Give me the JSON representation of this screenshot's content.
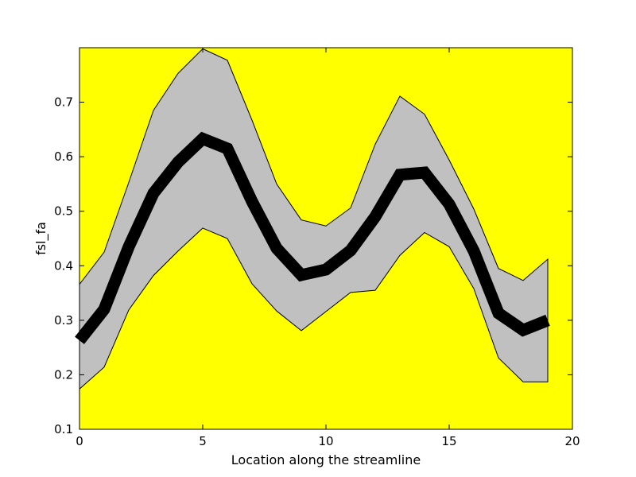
{
  "chart_data": {
    "type": "line",
    "xlabel": "Location along the streamline",
    "ylabel": "fsl_fa",
    "xlim": [
      0,
      20
    ],
    "ylim": [
      0.1,
      0.8
    ],
    "x_ticks": [
      "0",
      "5",
      "10",
      "15",
      "20"
    ],
    "y_ticks": [
      "0.1",
      "0.2",
      "0.3",
      "0.4",
      "0.5",
      "0.6",
      "0.7"
    ],
    "grid": false,
    "background_color": "#ffff00",
    "band_color": "#c0c0c0",
    "line_color": "#000000",
    "x": [
      0,
      1,
      2,
      3,
      4,
      5,
      6,
      7,
      8,
      9,
      10,
      11,
      12,
      13,
      14,
      15,
      16,
      17,
      18,
      19
    ],
    "series": [
      {
        "values": [
          0.263,
          0.32,
          0.435,
          0.533,
          0.59,
          0.633,
          0.615,
          0.518,
          0.432,
          0.383,
          0.393,
          0.428,
          0.49,
          0.567,
          0.571,
          0.513,
          0.427,
          0.313,
          0.282,
          0.3
        ]
      }
    ],
    "band": {
      "upper": [
        0.366,
        0.425,
        0.553,
        0.685,
        0.753,
        0.798,
        0.777,
        0.667,
        0.55,
        0.484,
        0.473,
        0.506,
        0.623,
        0.711,
        0.678,
        0.594,
        0.504,
        0.395,
        0.373,
        0.412
      ],
      "lower": [
        0.174,
        0.214,
        0.319,
        0.382,
        0.427,
        0.469,
        0.45,
        0.367,
        0.317,
        0.281,
        0.316,
        0.351,
        0.355,
        0.419,
        0.461,
        0.435,
        0.358,
        0.231,
        0.187,
        0.187
      ]
    }
  }
}
